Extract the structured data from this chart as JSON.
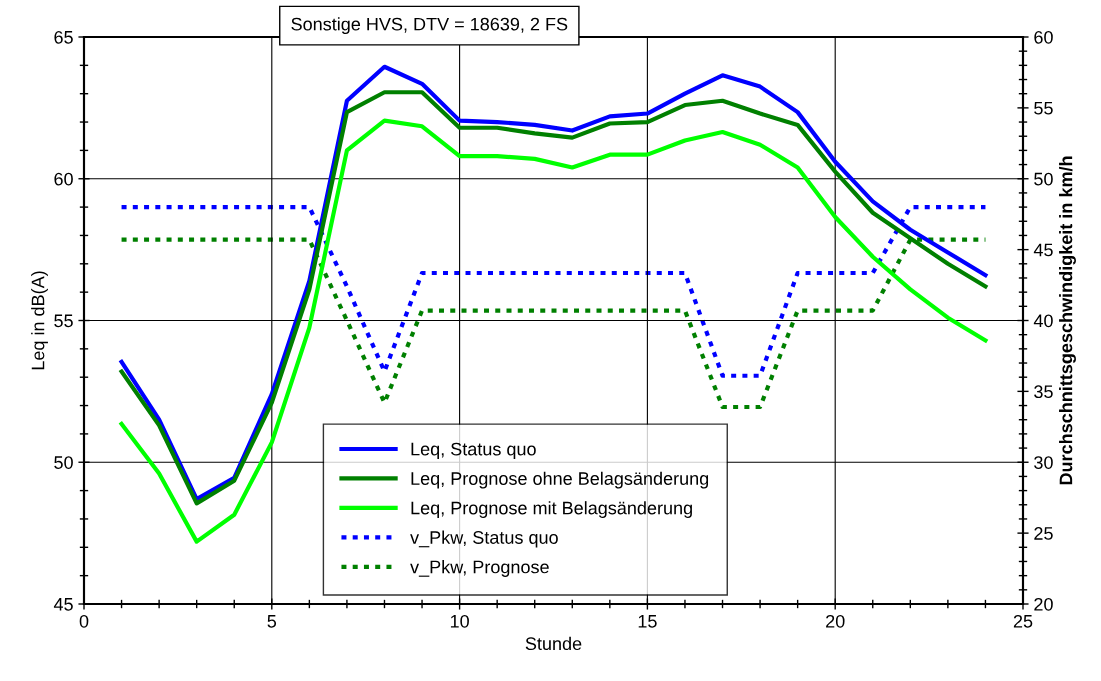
{
  "chart_data": {
    "type": "line",
    "title": "Sonstige HVS, DTV = 18639, 2 FS",
    "xlabel": "Stunde",
    "ylabel": "Leq in dB(A)",
    "y2label": "Durchschnittsgeschwindigkeit in km/h",
    "x": [
      1,
      2,
      3,
      4,
      5,
      6,
      7,
      8,
      9,
      10,
      11,
      12,
      13,
      14,
      15,
      16,
      17,
      18,
      19,
      20,
      21,
      22,
      23,
      24
    ],
    "series": [
      {
        "name": "Leq, Status quo",
        "color": "#0000ff",
        "line_style": "solid",
        "values": [
          53.54,
          51.5,
          48.7,
          49.45,
          52.4,
          56.4,
          62.75,
          63.95,
          63.35,
          62.05,
          62.0,
          61.9,
          61.7,
          62.2,
          62.3,
          63.0,
          63.65,
          63.25,
          62.35,
          60.6,
          59.2,
          58.2,
          57.4,
          56.6
        ]
      },
      {
        "name": "Leq, Prognose ohne Belagsänderung",
        "color": "#008000",
        "line_style": "solid",
        "values": [
          53.2,
          51.3,
          48.55,
          49.35,
          52.1,
          56.1,
          62.35,
          63.05,
          63.05,
          61.8,
          61.8,
          61.6,
          61.45,
          61.95,
          62.0,
          62.6,
          62.75,
          62.3,
          61.9,
          60.25,
          58.8,
          57.9,
          57.0,
          56.2
        ]
      },
      {
        "name": "Leq, Prognose mit Belagsänderung",
        "color": "#00ff00",
        "line_style": "solid",
        "values": [
          51.35,
          49.6,
          47.2,
          48.15,
          50.7,
          54.75,
          61.0,
          62.05,
          61.85,
          60.8,
          60.8,
          60.7,
          60.4,
          60.85,
          60.85,
          61.35,
          61.65,
          61.2,
          60.4,
          58.65,
          57.25,
          56.1,
          55.1,
          54.3
        ]
      },
      {
        "name": "v_Pkw, Status quo",
        "color": "#0000ff",
        "line_style": "dashed",
        "axis": "y2",
        "values": [
          48,
          48,
          48,
          48,
          48,
          48,
          42.4,
          36.4,
          43.35,
          43.35,
          43.35,
          43.35,
          43.35,
          43.35,
          43.35,
          43.35,
          36.1,
          36.1,
          43.35,
          43.35,
          43.35,
          48,
          48,
          48
        ]
      },
      {
        "name": "v_Pkw, Prognose",
        "color": "#008000",
        "line_style": "dashed",
        "axis": "y2",
        "values": [
          45.7,
          45.7,
          45.7,
          45.7,
          45.7,
          45.7,
          40.0,
          34.2,
          40.7,
          40.7,
          40.7,
          40.7,
          40.7,
          40.7,
          40.7,
          40.7,
          33.9,
          33.9,
          40.7,
          40.7,
          40.7,
          45.7,
          45.7,
          45.7
        ]
      }
    ],
    "xlim": [
      0,
      25
    ],
    "xticks": [
      0,
      5,
      10,
      15,
      20,
      25
    ],
    "ylim": [
      45,
      65
    ],
    "yticks": [
      45,
      50,
      55,
      60,
      65
    ],
    "y2lim": [
      20,
      60
    ],
    "y2ticks": [
      20,
      25,
      30,
      35,
      40,
      45,
      50,
      55,
      60
    ],
    "grid": true,
    "legend": "bottom",
    "marker": "none"
  }
}
